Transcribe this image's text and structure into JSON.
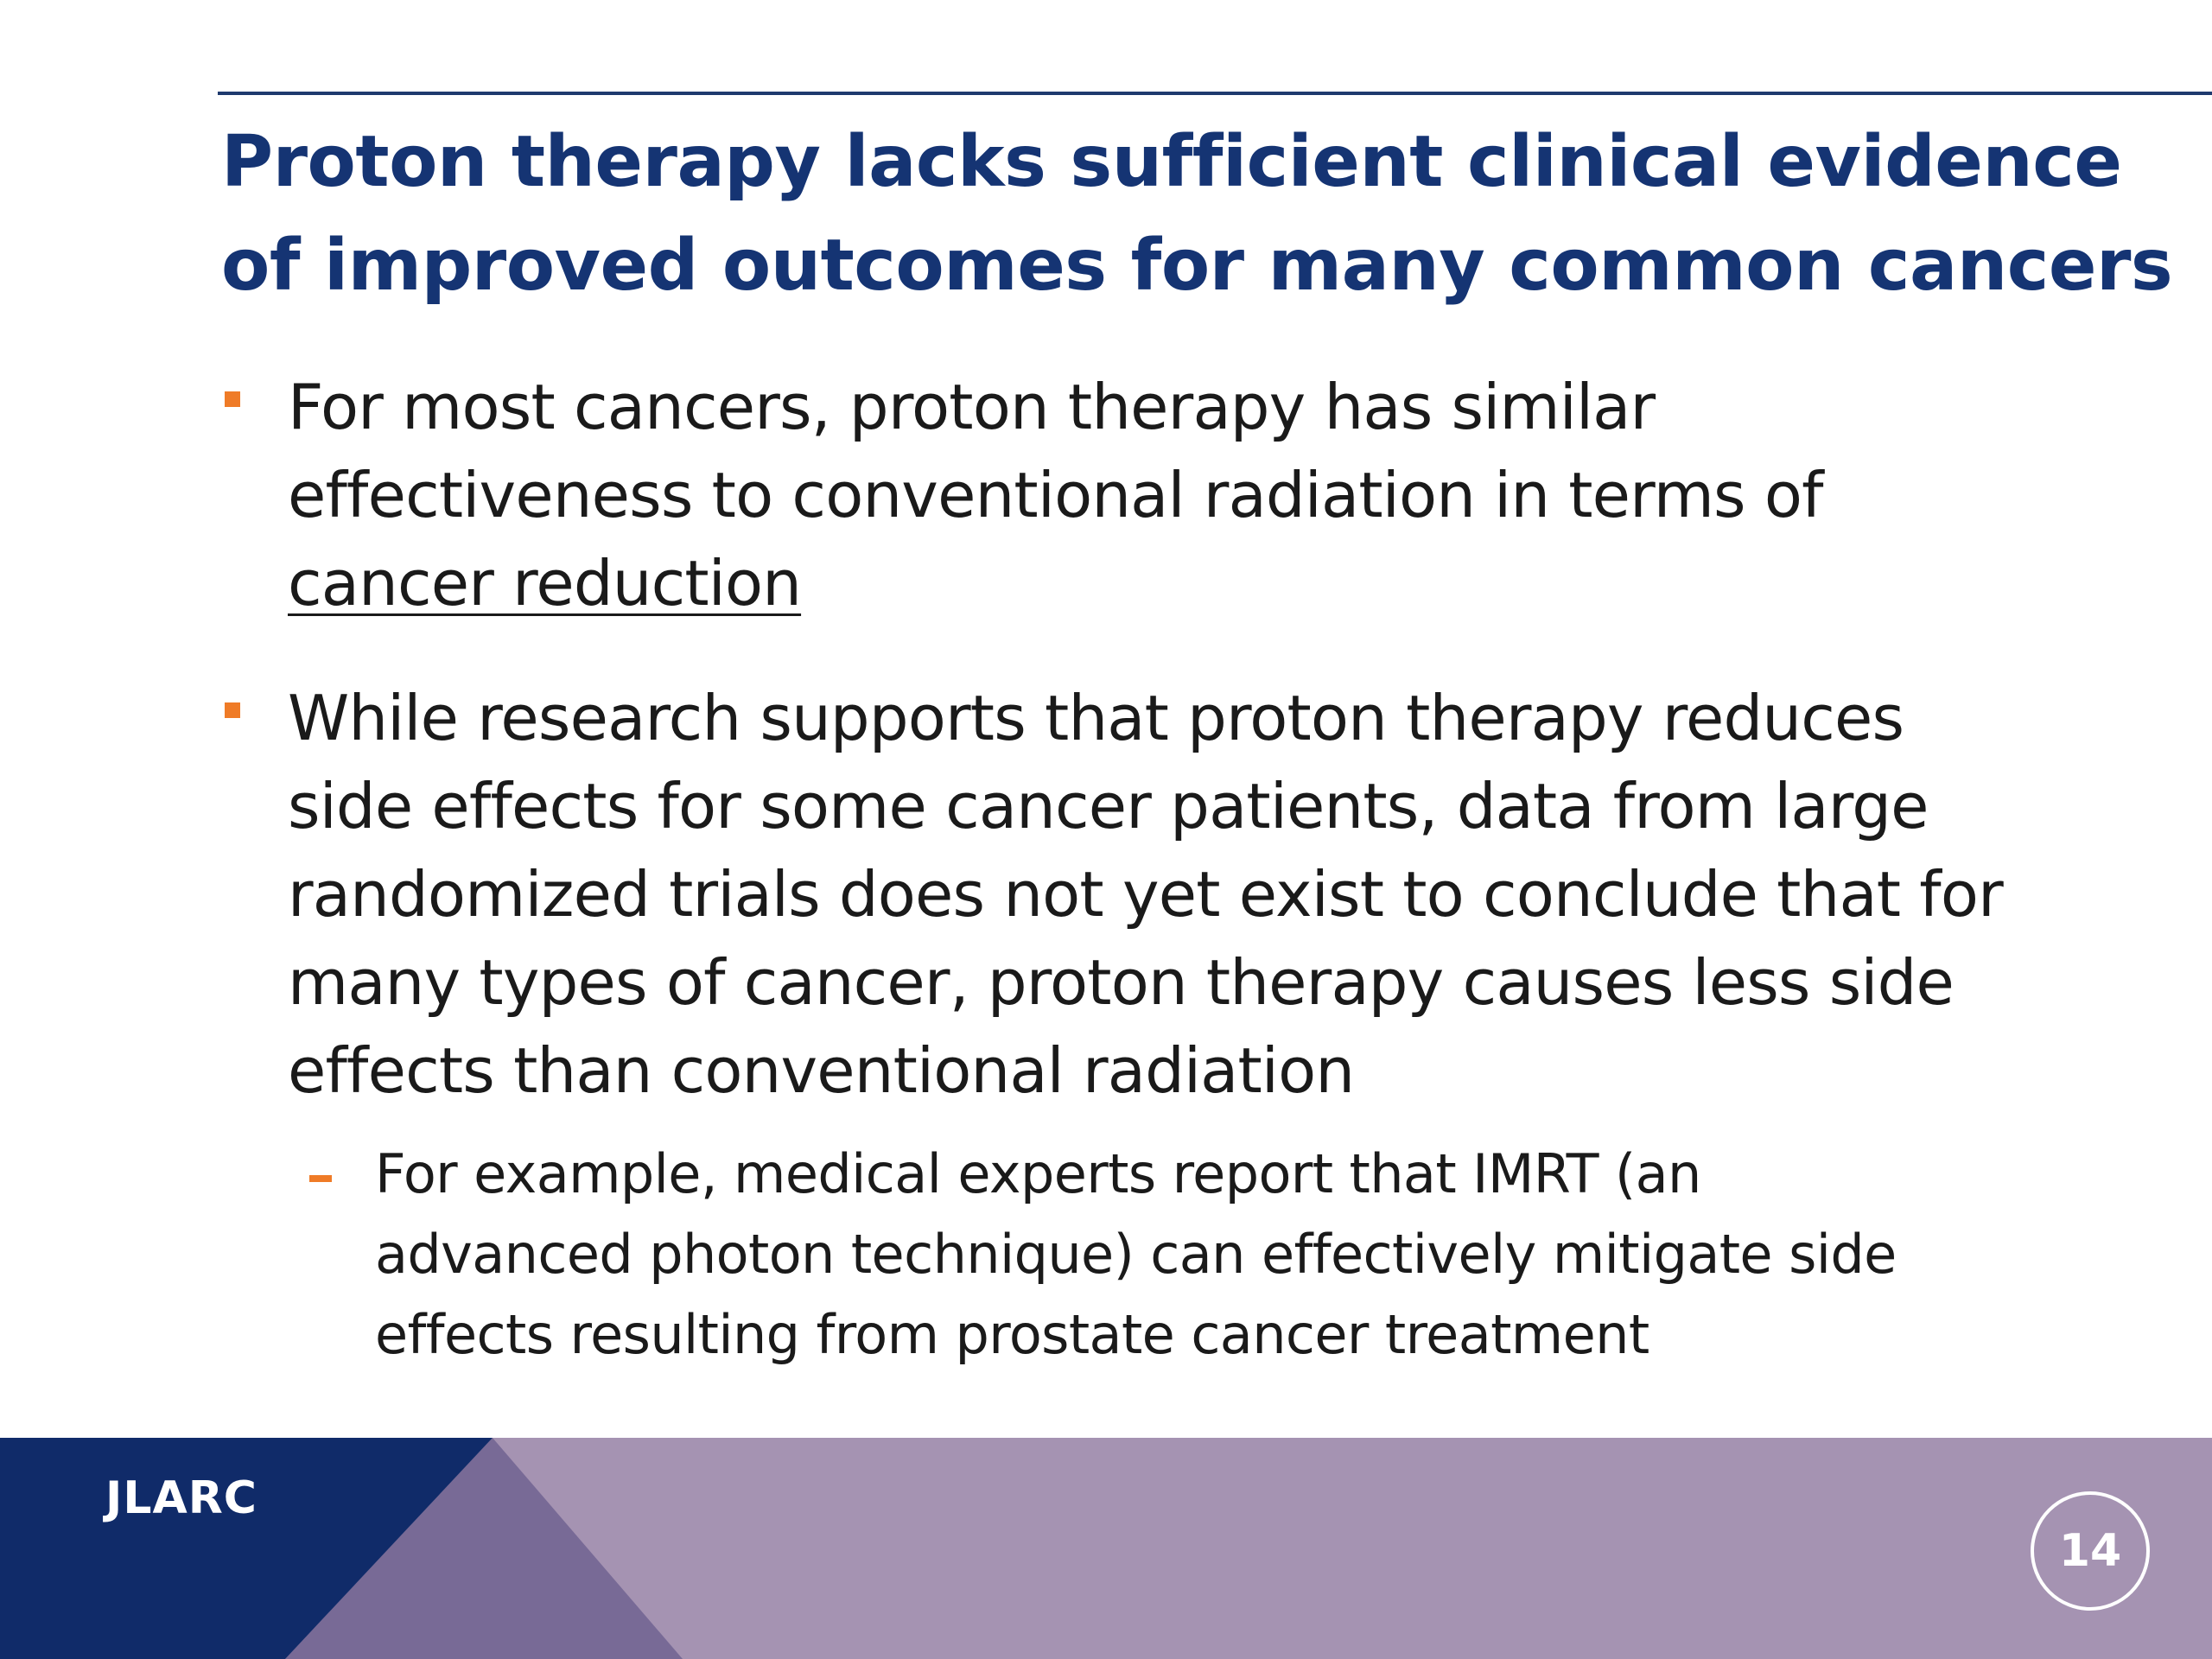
{
  "slide": {
    "title_lines": [
      "Proton therapy lacks sufficient clinical evidence",
      "of improved outcomes for many common cancers"
    ],
    "bullets": [
      {
        "lines": [
          "For most cancers, proton therapy has similar",
          "effectiveness to conventional radiation in terms of",
          "cancer reduction"
        ]
      },
      {
        "lines": [
          "While research supports that proton therapy reduces",
          "side effects for some cancer patients, data from large",
          "randomized trials does not yet exist to conclude that for",
          "many types of cancer, proton therapy causes less side",
          "effects than conventional radiation"
        ]
      }
    ],
    "sub_bullet": {
      "lines": [
        "For example, medical experts report that IMRT (an",
        "advanced photon technique) can effectively mitigate side",
        "effects resulting from prostate cancer treatment"
      ]
    }
  },
  "footer": {
    "logo": "JLARC",
    "page_number": "14"
  },
  "colors": {
    "title": "#153473",
    "accent_orange": "#ef7b27",
    "footer_navy": "#102b69",
    "footer_purple_mid": "#786a96",
    "footer_purple_light": "#a593b2"
  }
}
